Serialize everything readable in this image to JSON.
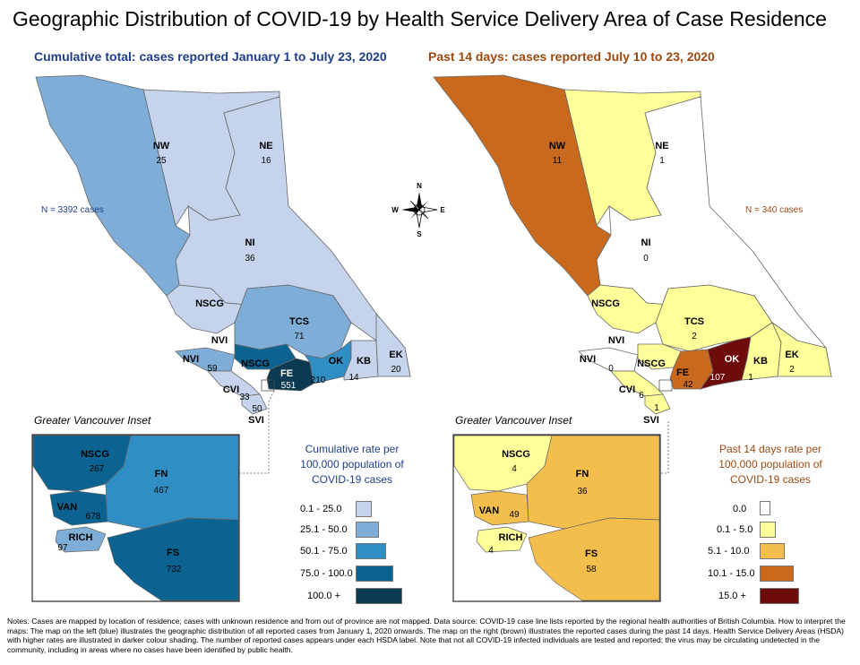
{
  "title": "Geographic Distribution of COVID-19 by Health Service Delivery Area of Case Residence",
  "left_map": {
    "subtitle": "Cumulative total: cases reported January 1 to July 23, 2020",
    "n_label": "N = 3392 cases",
    "regions": [
      {
        "code": "NW",
        "value": "25",
        "rate_class": "25.1 - 50.0"
      },
      {
        "code": "NE",
        "value": "16",
        "rate_class": "0.1 - 25.0"
      },
      {
        "code": "NI",
        "value": "36",
        "rate_class": "0.1 - 25.0"
      },
      {
        "code": "NSCG",
        "value": "",
        "rate_class": "0.1 - 25.0"
      },
      {
        "code": "TCS",
        "value": "71",
        "rate_class": "25.1 - 50.0"
      },
      {
        "code": "NVI",
        "value": "",
        "rate_class": "25.1 - 50.0"
      },
      {
        "code": "NVI",
        "value": "59",
        "rate_class": "25.1 - 50.0"
      },
      {
        "code": "NSCG",
        "value": "",
        "rate_class": "75.0 - 100.0"
      },
      {
        "code": "FE",
        "value": "551",
        "rate_class": "100.0 +"
      },
      {
        "code": "OK",
        "value": "210",
        "rate_class": "50.1 - 75.0"
      },
      {
        "code": "KB",
        "value": "14",
        "rate_class": "0.1 - 25.0"
      },
      {
        "code": "EK",
        "value": "20",
        "rate_class": "0.1 - 25.0"
      },
      {
        "code": "CVI",
        "value": "33",
        "rate_class": "0.1 - 25.0"
      },
      {
        "code": "SVI",
        "value": "50",
        "rate_class": "0.1 - 25.0"
      }
    ],
    "inset_title": "Greater Vancouver Inset",
    "inset_regions": [
      {
        "code": "NSCG",
        "value": "267"
      },
      {
        "code": "FN",
        "value": "467"
      },
      {
        "code": "VAN",
        "value": "678"
      },
      {
        "code": "RICH",
        "value": "97"
      },
      {
        "code": "FS",
        "value": "732"
      }
    ],
    "legend_title": "Cumulative rate per 100,000 population of COVID-19 cases",
    "legend": [
      {
        "label": "0.1 - 25.0",
        "color": "#c6d3ec"
      },
      {
        "label": "25.1 - 50.0",
        "color": "#7eaed8"
      },
      {
        "label": "50.1 - 75.0",
        "color": "#2f8fc5"
      },
      {
        "label": "75.0 - 100.0",
        "color": "#0b6391"
      },
      {
        "label": "100.0 +",
        "color": "#0b3a52"
      }
    ]
  },
  "right_map": {
    "subtitle": "Past 14 days: cases reported July 10 to 23, 2020",
    "n_label": "N = 340 cases",
    "regions": [
      {
        "code": "NW",
        "value": "11",
        "rate_class": "10.1 - 15.0"
      },
      {
        "code": "NE",
        "value": "1",
        "rate_class": "0.1 - 5.0"
      },
      {
        "code": "NI",
        "value": "0",
        "rate_class": "0.0"
      },
      {
        "code": "NSCG",
        "value": "",
        "rate_class": "0.1 - 5.0"
      },
      {
        "code": "TCS",
        "value": "2",
        "rate_class": "0.1 - 5.0"
      },
      {
        "code": "NVI",
        "value": "",
        "rate_class": "0.0"
      },
      {
        "code": "NVI",
        "value": "0",
        "rate_class": "0.0"
      },
      {
        "code": "NSCG",
        "value": "",
        "rate_class": "0.1 - 5.0"
      },
      {
        "code": "FE",
        "value": "42",
        "rate_class": "10.1 - 15.0"
      },
      {
        "code": "OK",
        "value": "107",
        "rate_class": "15.0 +"
      },
      {
        "code": "KB",
        "value": "1",
        "rate_class": "0.1 - 5.0"
      },
      {
        "code": "EK",
        "value": "2",
        "rate_class": "0.1 - 5.0"
      },
      {
        "code": "CVI",
        "value": "6",
        "rate_class": "0.1 - 5.0"
      },
      {
        "code": "SVI",
        "value": "1",
        "rate_class": "0.1 - 5.0"
      }
    ],
    "inset_title": "Greater Vancouver Inset",
    "inset_regions": [
      {
        "code": "NSCG",
        "value": "4"
      },
      {
        "code": "FN",
        "value": "36"
      },
      {
        "code": "VAN",
        "value": "49"
      },
      {
        "code": "RICH",
        "value": "4"
      },
      {
        "code": "FS",
        "value": "58"
      }
    ],
    "legend_title": "Past 14 days rate per 100,000 population of COVID-19 cases",
    "legend": [
      {
        "label": "0.0",
        "color": "#ffffff"
      },
      {
        "label": "0.1 - 5.0",
        "color": "#ffff9a"
      },
      {
        "label": "5.1 - 10.0",
        "color": "#f4be4d"
      },
      {
        "label": "10.1 - 15.0",
        "color": "#c8691d"
      },
      {
        "label": "15.0 +",
        "color": "#6e0b0b"
      }
    ]
  },
  "compass": {
    "n": "N",
    "s": "S",
    "e": "E",
    "w": "W"
  },
  "notes": "Notes: Cases are mapped by location of residence; cases with unknown residence and from out of province are not mapped. Data source: COVID-19 case line lists reported by the regional health authorities of British Columbia. How to interpret the maps: The map on the left (blue) illustrates the geographic distribution of all reported cases from January 1, 2020 onwards. The map on the right (brown) illustrates the reported cases during the past 14 days. Health Service Delivery Areas (HSDA) with higher rates are illustrated in darker colour shading. The number of reported cases appears under each HSDA label. Note that not all COVID-19 infected individuals are tested and reported; the virus may be circulating undetected in the community, including in areas where no cases have been identified by public health."
}
